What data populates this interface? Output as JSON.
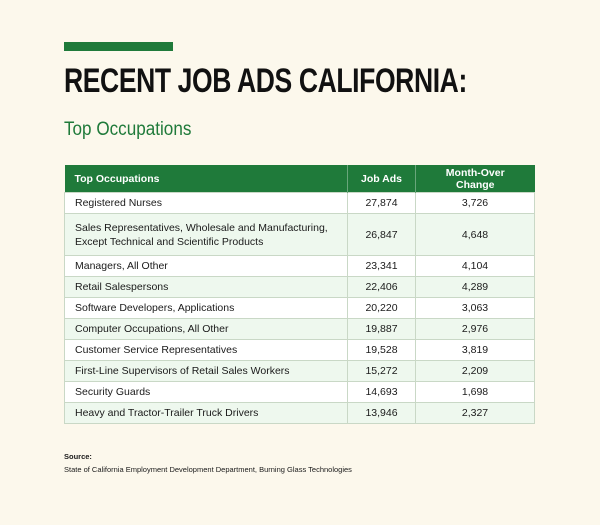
{
  "title": "RECENT JOB ADS CALIFORNIA:",
  "subtitle": "Top Occupations",
  "table": {
    "headers": [
      "Top Occupations",
      "Job Ads",
      "Month-Over Change"
    ],
    "rows": [
      [
        "Registered Nurses",
        "27,874",
        "3,726"
      ],
      [
        "Sales Representatives, Wholesale and Manufacturing, Except Technical and Scientific Products",
        "26,847",
        "4,648"
      ],
      [
        "Managers, All Other",
        "23,341",
        "4,104"
      ],
      [
        "Retail Salespersons",
        "22,406",
        "4,289"
      ],
      [
        "Software Developers, Applications",
        "20,220",
        "3,063"
      ],
      [
        "Computer Occupations, All Other",
        "19,887",
        "2,976"
      ],
      [
        "Customer Service Representatives",
        "19,528",
        "3,819"
      ],
      [
        "First-Line Supervisors of Retail Sales Workers",
        "15,272",
        "2,209"
      ],
      [
        "Security Guards",
        "14,693",
        "1,698"
      ],
      [
        "Heavy and Tractor-Trailer Truck Drivers",
        "13,946",
        "2,327"
      ]
    ]
  },
  "source": {
    "label": "Source:",
    "text": "State of California Employment Development Department, Burning Glass Technologies"
  }
}
